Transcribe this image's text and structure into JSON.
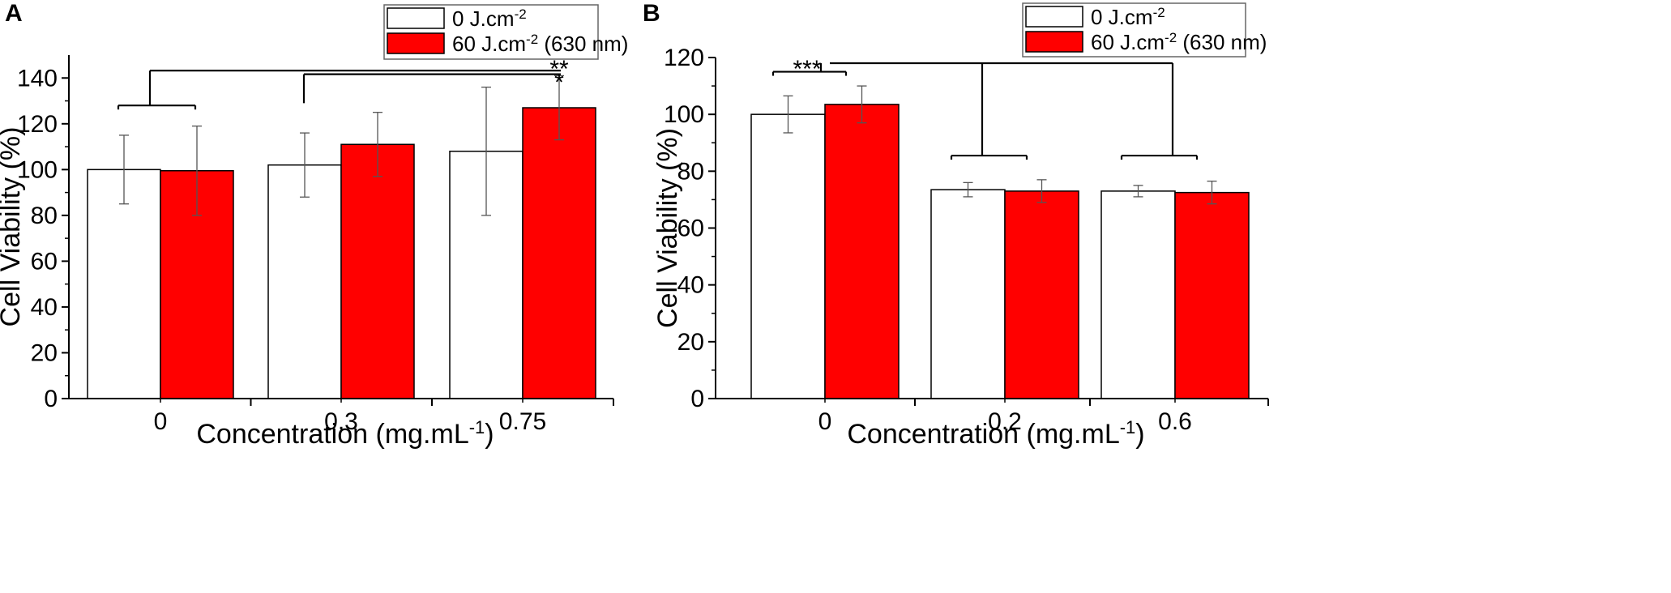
{
  "colors": {
    "control": "#ffffff",
    "treated": "#ff0000",
    "axis": "#000000",
    "errorbar": "#555555"
  },
  "chart_data": [
    {
      "panel": "A",
      "type": "bar",
      "xlabel": "Concentration (mg.mL",
      "xlabel_sup": "-1",
      "xlabel_tail": ")",
      "ylabel": "Cell Viability (%)",
      "ylim": [
        0,
        150
      ],
      "yticks": [
        "0",
        "20",
        "40",
        "60",
        "80",
        "100",
        "120",
        "140"
      ],
      "categories": [
        "0",
        "0.3",
        "0.75"
      ],
      "legend": [
        {
          "pre": "0 J.cm",
          "sup": "-2",
          "post": ""
        },
        {
          "pre": "60 J.cm",
          "sup": "-2",
          "post": " (630 nm)"
        }
      ],
      "series": [
        {
          "name": "0 J.cm-2",
          "values": [
            100,
            102,
            108
          ],
          "errors": [
            15,
            14,
            28
          ]
        },
        {
          "name": "60 J.cm-2 (630 nm)",
          "values": [
            99.5,
            111,
            127
          ],
          "errors": [
            19.5,
            14,
            14
          ]
        }
      ],
      "significance": [
        {
          "label": "**",
          "from": "0",
          "to": "0.75",
          "level": 145
        },
        {
          "label": "*",
          "from": "0.3",
          "to": "0.75",
          "level": 142
        }
      ]
    },
    {
      "panel": "B",
      "type": "bar",
      "xlabel": "Concentration (mg.mL",
      "xlabel_sup": "-1",
      "xlabel_tail": ")",
      "ylabel": "Cell Viability (%)",
      "ylim": [
        0,
        120
      ],
      "yticks": [
        "0",
        "20",
        "40",
        "60",
        "80",
        "100",
        "120"
      ],
      "categories": [
        "0",
        "0.2",
        "0.6"
      ],
      "legend": [
        {
          "pre": "0 J.cm",
          "sup": "-2",
          "post": ""
        },
        {
          "pre": "60 J.cm",
          "sup": "-2",
          "post": " (630 nm)"
        }
      ],
      "series": [
        {
          "name": "0 J.cm-2",
          "values": [
            100,
            73.5,
            73
          ],
          "errors": [
            6.5,
            2.5,
            2
          ]
        },
        {
          "name": "60 J.cm-2 (630 nm)",
          "values": [
            103.5,
            73,
            72.5
          ],
          "errors": [
            6.5,
            4,
            4
          ]
        }
      ],
      "significance": [
        {
          "label": "***",
          "from": "0",
          "to": "0.2, 0.6",
          "level": 118
        }
      ]
    }
  ]
}
